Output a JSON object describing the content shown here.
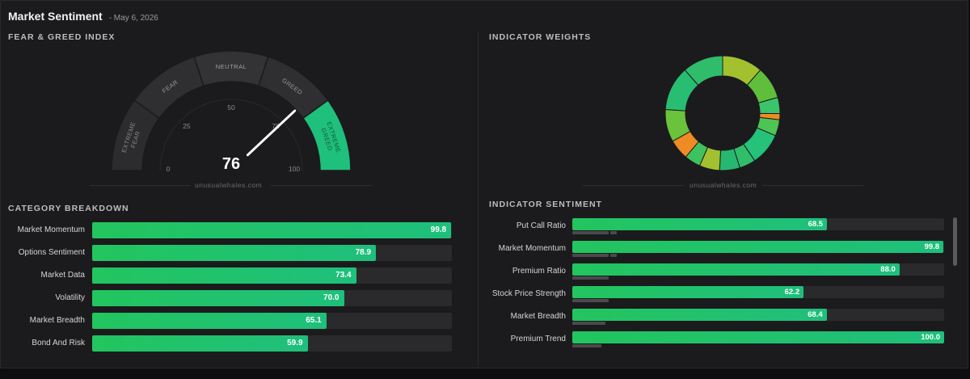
{
  "header": {
    "title": "Market Sentiment",
    "date": "- May 6, 2026"
  },
  "sections": {
    "fear_greed": "FEAR & GREED INDEX",
    "indicator_weights": "INDICATOR WEIGHTS",
    "category_breakdown": "CATEGORY BREAKDOWN",
    "indicator_sentiment": "INDICATOR SENTIMENT"
  },
  "watermark": "unusualwhales.com",
  "colors": {
    "accent": "#1fbf7c",
    "bar": "#22c55e",
    "track": "#2a2a2c",
    "panel": "#1b1b1d"
  },
  "chart_data": [
    {
      "type": "gauge",
      "value": 76,
      "display_value": "76",
      "range": [
        0,
        100
      ],
      "zones": [
        "EXTREME FEAR",
        "FEAR",
        "NEUTRAL",
        "GREED",
        "EXTREME GREED"
      ],
      "active_zone": "EXTREME GREED",
      "ticks": [
        "0",
        "25",
        "50",
        "75",
        "100"
      ]
    },
    {
      "type": "pie",
      "subtype": "donut",
      "note_values_estimated": true,
      "segments": [
        {
          "value": 10,
          "color": "#a3c12f"
        },
        {
          "value": 8,
          "color": "#5fbf3c"
        },
        {
          "value": 4,
          "color": "#3cc46a"
        },
        {
          "value": 1.5,
          "color": "#f08a24"
        },
        {
          "value": 4,
          "color": "#4ec455"
        },
        {
          "value": 8,
          "color": "#25c27a"
        },
        {
          "value": 4,
          "color": "#2fbe6a"
        },
        {
          "value": 5,
          "color": "#27b870"
        },
        {
          "value": 5,
          "color": "#a3c12f"
        },
        {
          "value": 4,
          "color": "#3ec260"
        },
        {
          "value": 5,
          "color": "#f08a24"
        },
        {
          "value": 8,
          "color": "#6bc23b"
        },
        {
          "value": 11,
          "color": "#28be72"
        },
        {
          "value": 10,
          "color": "#2fbd6c"
        }
      ]
    },
    {
      "type": "bar",
      "orientation": "horizontal",
      "title": "CATEGORY BREAKDOWN",
      "categories": [
        "Market Momentum",
        "Options Sentiment",
        "Market Data",
        "Volatility",
        "Market Breadth",
        "Bond And Risk"
      ],
      "values": [
        99.8,
        78.9,
        73.4,
        70.0,
        65.1,
        59.9
      ],
      "labels": [
        "99.8",
        "78.9",
        "73.4",
        "70.0",
        "65.1",
        "59.9"
      ],
      "xlim": [
        0,
        100
      ]
    },
    {
      "type": "bar",
      "orientation": "horizontal",
      "title": "INDICATOR SENTIMENT",
      "categories": [
        "Put Call Ratio",
        "Market Momentum",
        "Premium Ratio",
        "Stock Price Strength",
        "Market Breadth",
        "Premium Trend"
      ],
      "values": [
        68.5,
        99.8,
        88.0,
        62.2,
        68.4,
        100.0
      ],
      "labels": [
        "68.5",
        "99.8",
        "88.0",
        "62.2",
        "68.4",
        "100.0"
      ],
      "weights": [
        10,
        10,
        10,
        10,
        9,
        8
      ],
      "xlim": [
        0,
        100
      ]
    }
  ]
}
